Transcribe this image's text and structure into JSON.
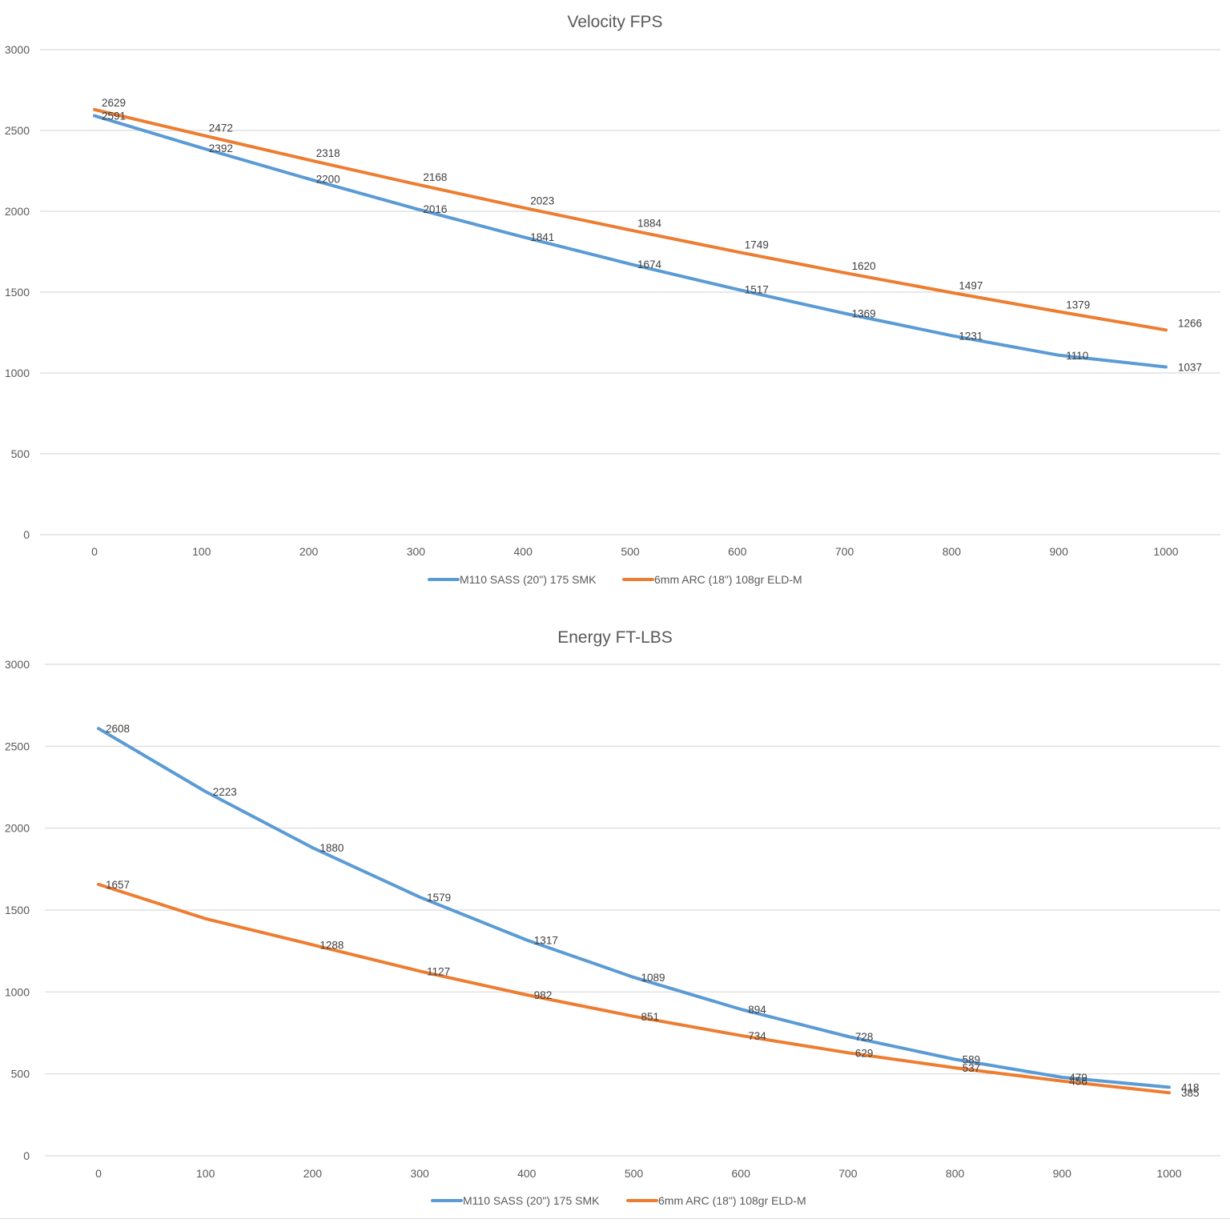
{
  "colors": {
    "series_blue": "#5b9bd5",
    "series_orange": "#ed7d31",
    "grid": "#d9d9d9",
    "text": "#595959"
  },
  "chart_data": [
    {
      "type": "line",
      "title": "Velocity FPS",
      "xlabel": "",
      "ylabel": "",
      "x": [
        0,
        100,
        200,
        300,
        400,
        500,
        600,
        700,
        800,
        900,
        1000
      ],
      "x_tick_labels": [
        "0",
        "100",
        "200",
        "300",
        "400",
        "500",
        "600",
        "700",
        "800",
        "900",
        "1000"
      ],
      "ylim": [
        0,
        3000
      ],
      "y_ticks": [
        0,
        500,
        1000,
        1500,
        2000,
        2500,
        3000
      ],
      "grid": true,
      "legend_position": "bottom",
      "series": [
        {
          "name": "M110 SASS (20\") 175 SMK",
          "color": "#5b9bd5",
          "values": [
            2591,
            2392,
            2200,
            2016,
            1841,
            1674,
            1517,
            1369,
            1231,
            1110,
            1037
          ]
        },
        {
          "name": "6mm ARC (18\") 108gr ELD-M",
          "color": "#ed7d31",
          "values": [
            2629,
            2472,
            2318,
            2168,
            2023,
            1884,
            1749,
            1620,
            1497,
            1379,
            1266
          ]
        }
      ]
    },
    {
      "type": "line",
      "title": "Energy FT-LBS",
      "xlabel": "",
      "ylabel": "",
      "x": [
        0,
        100,
        200,
        300,
        400,
        500,
        600,
        700,
        800,
        900,
        1000
      ],
      "x_tick_labels": [
        "0",
        "100",
        "200",
        "300",
        "400",
        "500",
        "600",
        "700",
        "800",
        "900",
        "1000"
      ],
      "ylim": [
        0,
        3000
      ],
      "y_ticks": [
        0,
        500,
        1000,
        1500,
        2000,
        2500,
        3000
      ],
      "grid": true,
      "legend_position": "bottom",
      "series": [
        {
          "name": "M110 SASS (20\") 175 SMK",
          "color": "#5b9bd5",
          "values": [
            2608,
            2223,
            1880,
            1579,
            1317,
            1089,
            894,
            728,
            589,
            479,
            418
          ]
        },
        {
          "name": "6mm ARC (18\") 108gr ELD-M",
          "color": "#ed7d31",
          "values": [
            1657,
            1447,
            1288,
            1127,
            982,
            851,
            734,
            629,
            537,
            456,
            385
          ],
          "labeled": [
            true,
            false,
            true,
            true,
            true,
            true,
            true,
            true,
            true,
            true,
            true
          ]
        }
      ]
    }
  ]
}
